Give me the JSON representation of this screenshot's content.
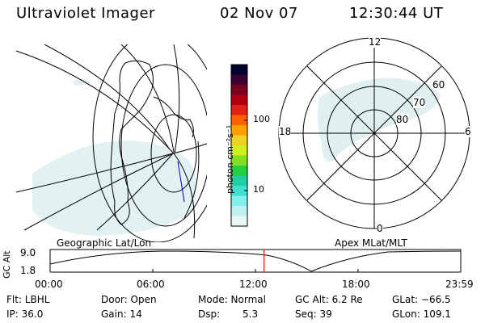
{
  "header": {
    "title": "Ultraviolet Imager",
    "date": "02 Nov 07",
    "time": "12:30:44 UT"
  },
  "colorbar": {
    "unit_label": "photon cm⁻²s⁻¹",
    "ticks": [
      "100",
      "10"
    ],
    "colors": [
      "#000033",
      "#3a0030",
      "#7a0020",
      "#b00010",
      "#e02010",
      "#ff6000",
      "#ffa000",
      "#f0d020",
      "#d0f020",
      "#80e020",
      "#20d040",
      "#20d0a0",
      "#40e0d0",
      "#80f0e8",
      "#c0f0f0",
      "#e8f8f8"
    ]
  },
  "geo_panel": {
    "label": "Geographic Lat/Lon"
  },
  "polar_panel": {
    "label": "Apex MLat/MLT",
    "mlt_labels": {
      "top": "12",
      "left": "18",
      "right": "6",
      "bottom": "0"
    },
    "lat_labels": [
      "60",
      "70",
      "80"
    ]
  },
  "altitude_plot": {
    "ylabel": "GC Alt",
    "yticks": [
      "9.0",
      "1.8"
    ],
    "xticks": [
      "00:00",
      "06:00",
      "12:00",
      "18:00",
      "23:59"
    ],
    "current_time_fraction": 0.521
  },
  "info": {
    "flt": "Flt: LBHL",
    "door": "Door: Open",
    "mode": "Mode: Normal",
    "gc_alt": "GC Alt: 6.2 Re",
    "glat": "GLat: −66.5",
    "ip": "IP: 36.0",
    "gain": "Gain: 14",
    "dsp_label": "Dsp:",
    "dsp_value": "5.3",
    "seq": "Seq: 39",
    "glon": "GLon: 109.1"
  }
}
